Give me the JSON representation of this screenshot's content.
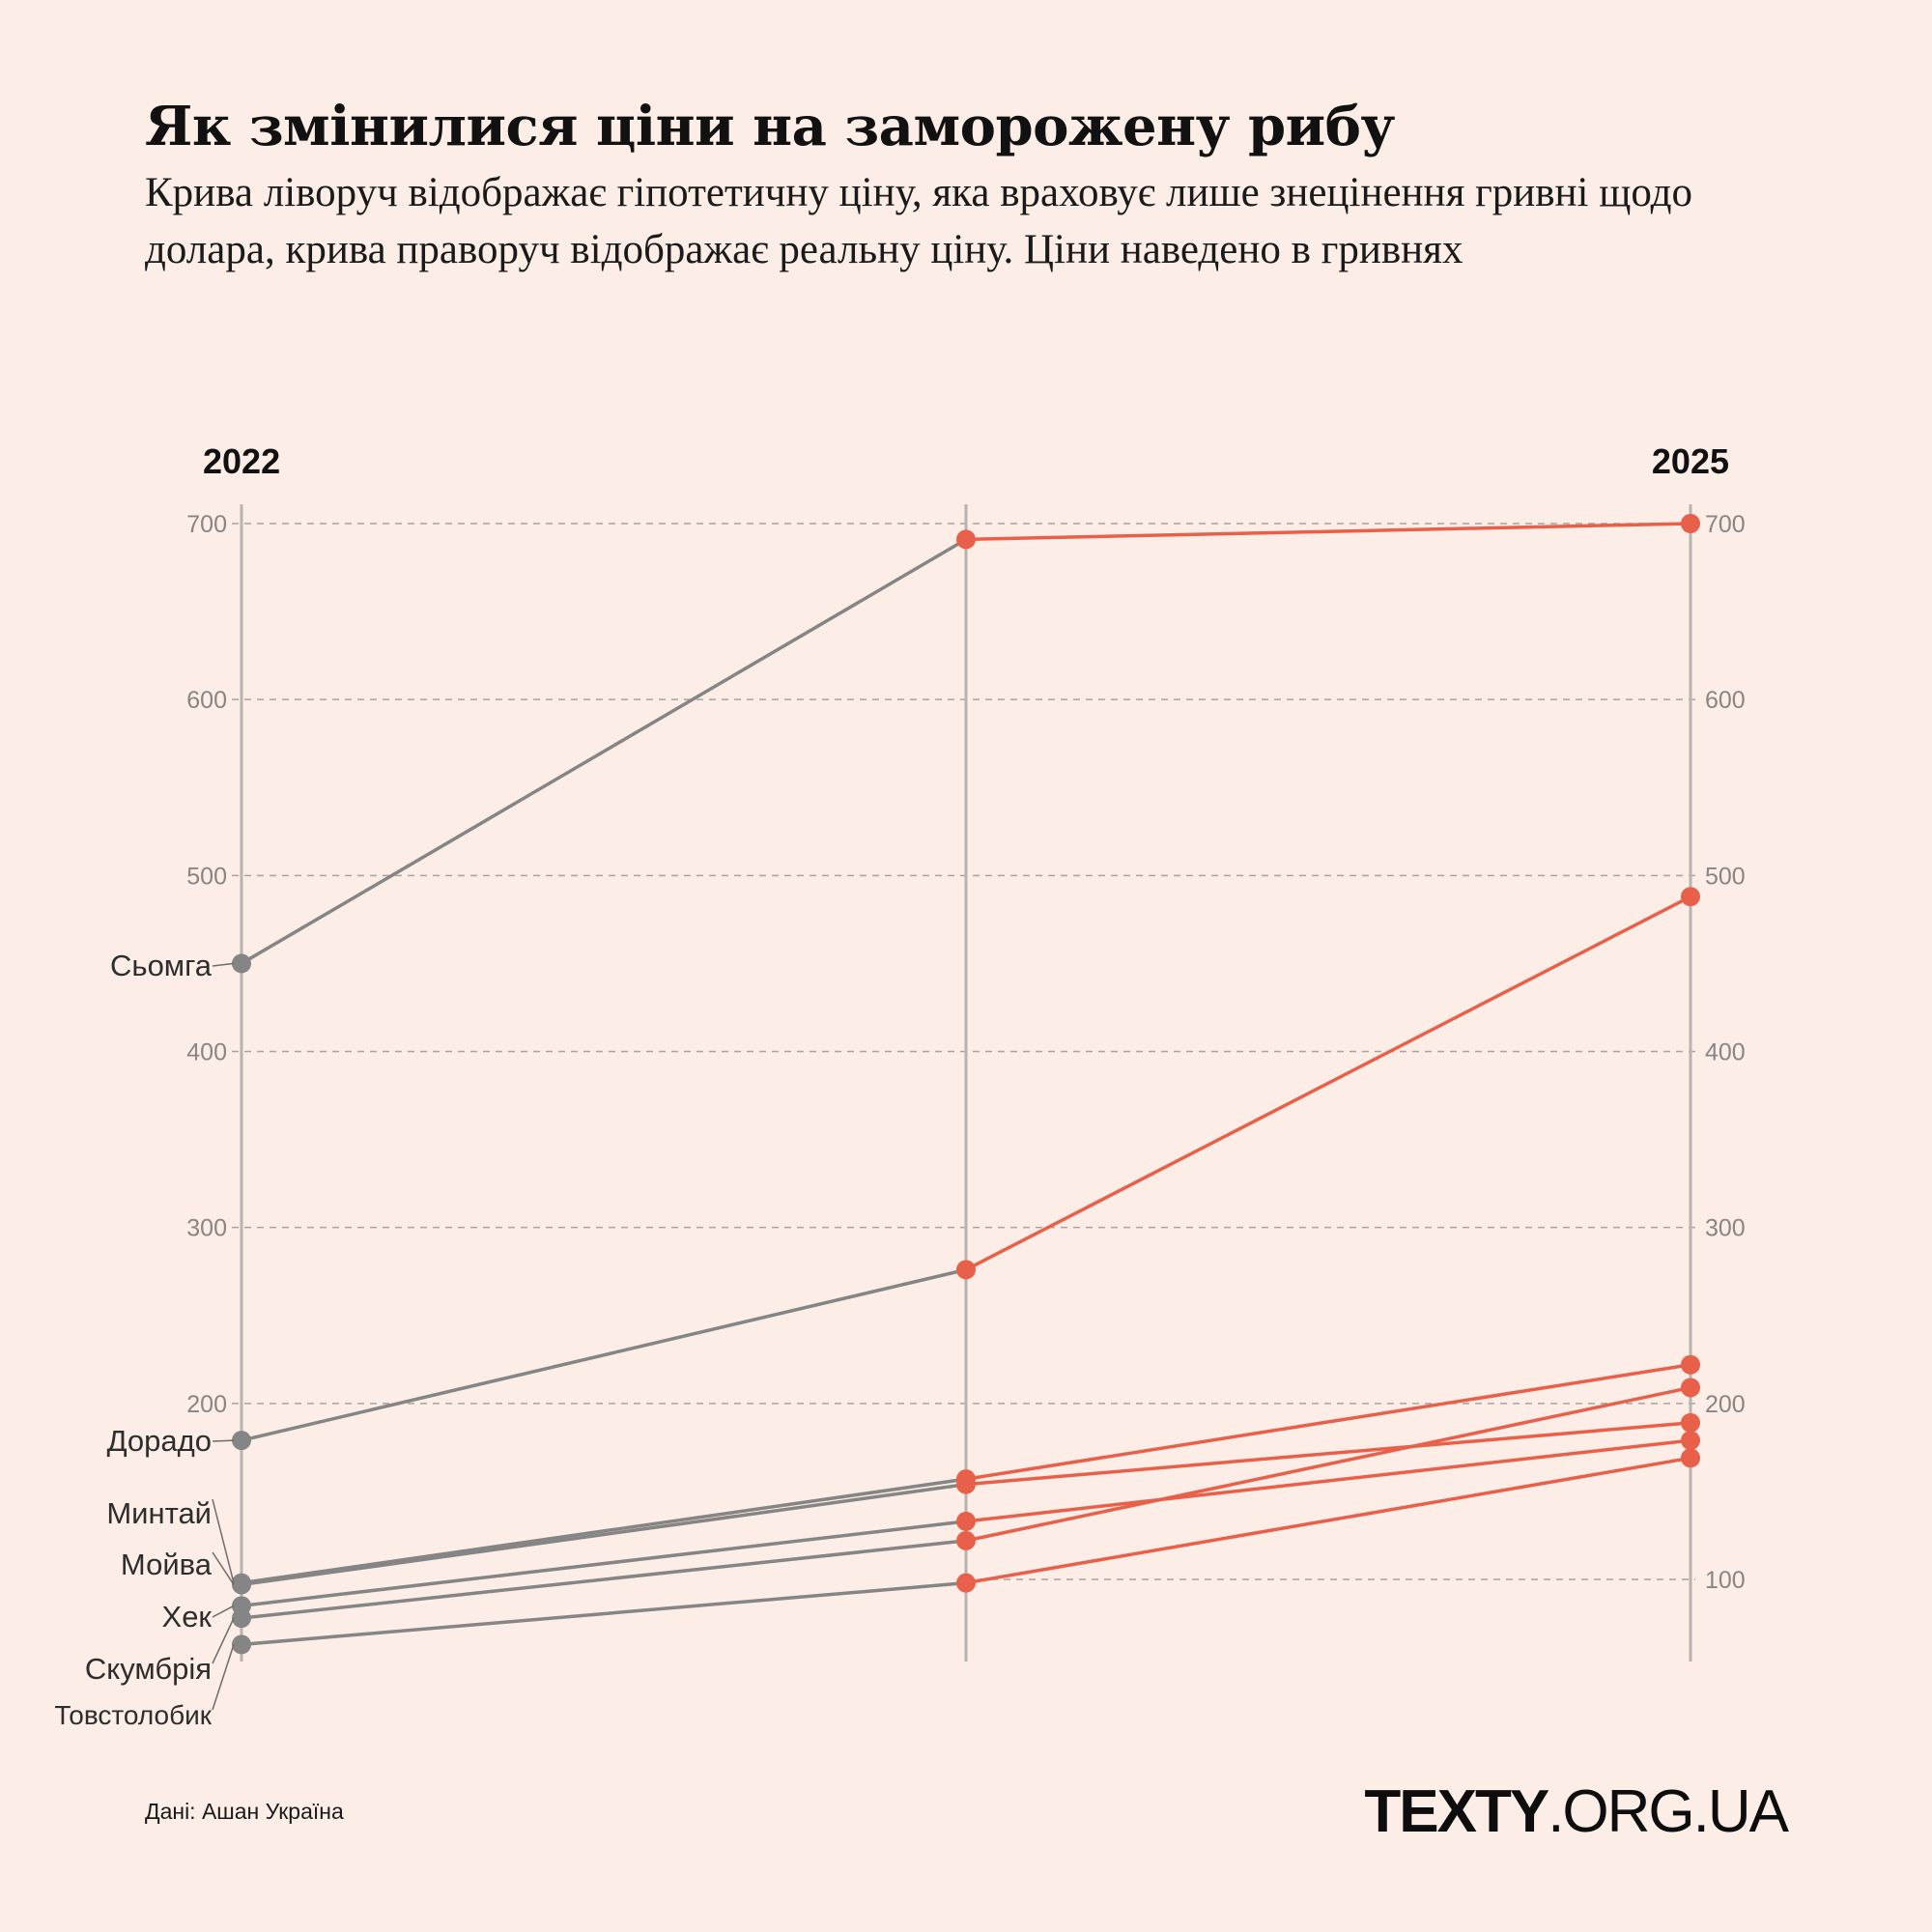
{
  "header": {
    "title": "Як змінилися ціни на заморожену рибу",
    "subtitle": "Крива ліворуч відображає гіпотетичну ціну, яка враховує лише знецінення гривні щодо долара, крива праворуч відображає реальну ціну. Ціни наведено в гривнях"
  },
  "footer": {
    "source": "Дані: Ашан Україна",
    "brand_bold": "TEXTY",
    "brand_rest": ".ORG.UA"
  },
  "colors": {
    "background": "#fcede6",
    "hypothetical": "#858585",
    "real": "#e8604a",
    "axis": "#b8b3b0",
    "grid": "#a8a2a0",
    "tick_text": "#8a8583"
  },
  "chart_data": {
    "type": "line",
    "title": "Як змінилися ціни на заморожену рибу",
    "columns": [
      "2022",
      "",
      "2025"
    ],
    "column_labels": {
      "left": "2022",
      "right": "2025"
    },
    "ylim": [
      50,
      710
    ],
    "yticks_left": [
      200,
      300,
      400,
      500,
      600,
      700
    ],
    "yticks_right": [
      100,
      200,
      300,
      400,
      500,
      600,
      700
    ],
    "grid": true,
    "series": [
      {
        "name": "Сьомга",
        "values": [
          450,
          691,
          700
        ]
      },
      {
        "name": "Дорадо",
        "values": [
          179,
          276,
          488
        ]
      },
      {
        "name": "Минтай",
        "values": [
          98,
          157,
          222
        ]
      },
      {
        "name": "Мойва",
        "values": [
          97,
          154,
          189
        ]
      },
      {
        "name": "Хек",
        "values": [
          85,
          133,
          179
        ]
      },
      {
        "name": "Скумбрія",
        "values": [
          78,
          122,
          209
        ]
      },
      {
        "name": "Товстолобик",
        "values": [
          63,
          98,
          169
        ]
      }
    ]
  }
}
